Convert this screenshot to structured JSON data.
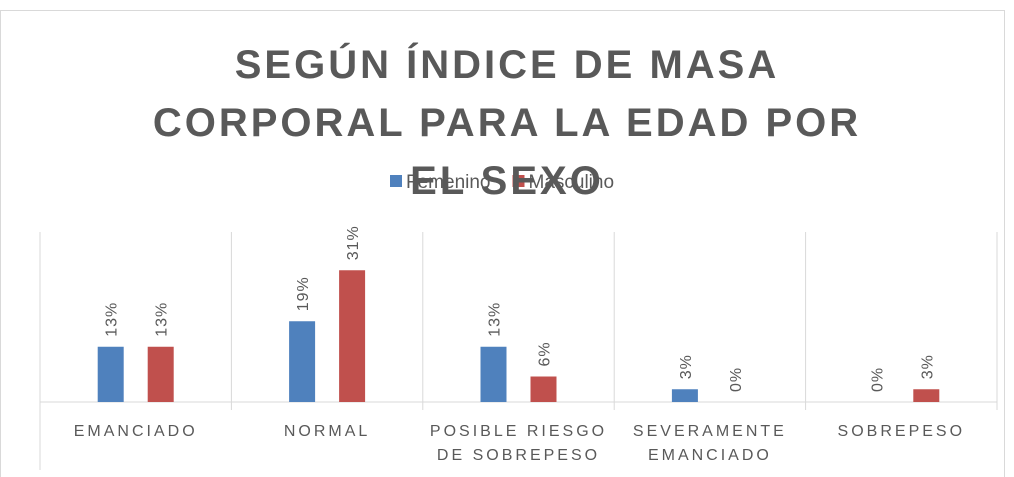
{
  "chart_data": {
    "type": "bar",
    "title": "SEGÚN ÍNDICE DE MASA CORPORAL PARA LA EDAD POR EL SEXO",
    "categories": [
      "EMANCIADO",
      "NORMAL",
      "POSIBLE RIESGO DE SOBREPESO",
      "SEVERAMENTE EMANCIADO",
      "SOBREPESO"
    ],
    "series": [
      {
        "name": "Femenino",
        "color": "#4f81bd",
        "values": [
          13,
          19,
          13,
          3,
          0
        ],
        "value_labels": [
          "13%",
          "19%",
          "13%",
          "3%",
          "0%"
        ]
      },
      {
        "name": "Masculino",
        "color": "#c0504d",
        "values": [
          13,
          31,
          6,
          0,
          3
        ],
        "value_labels": [
          "13%",
          "31%",
          "6%",
          "0%",
          "3%"
        ]
      }
    ],
    "ylim": [
      0,
      40
    ],
    "legend": "top"
  }
}
